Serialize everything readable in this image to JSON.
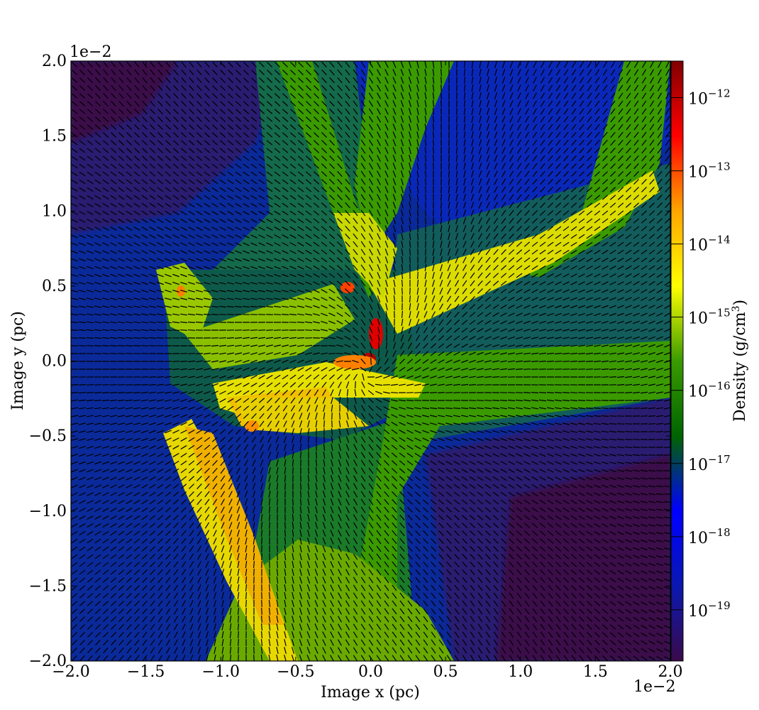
{
  "chart_data": {
    "type": "heatmap",
    "title": "",
    "xlabel": "Image x  (pc)",
    "ylabel": "Image y  (pc)",
    "xlim": [
      -2.0,
      2.0
    ],
    "ylim": [
      -2.0,
      2.0
    ],
    "x_offset_label": "1e−2",
    "y_offset_label": "1e−2",
    "x_ticks": [
      -2.0,
      -1.5,
      -1.0,
      -0.5,
      0.0,
      0.5,
      1.0,
      1.5,
      2.0
    ],
    "x_tick_labels": [
      "−2.0",
      "−1.5",
      "−1.0",
      "−0.5",
      "0.0",
      "0.5",
      "1.0",
      "1.5",
      "2.0"
    ],
    "y_ticks": [
      -2.0,
      -1.5,
      -1.0,
      -0.5,
      0.0,
      0.5,
      1.0,
      1.5,
      2.0
    ],
    "y_tick_labels": [
      "−2.0",
      "−1.5",
      "−1.0",
      "−0.5",
      "0.0",
      "0.5",
      "1.0",
      "1.5",
      "2.0"
    ],
    "colorbar": {
      "label": "Density  (g/cm",
      "label_superscript": "3",
      "label_close": ")",
      "scale": "log",
      "range_exponent": [
        -19.7,
        -11.5
      ],
      "tick_exponents": [
        -19,
        -18,
        -17,
        -16,
        -15,
        -14,
        -13,
        -12
      ],
      "tick_base": "10",
      "tick_superscripts": [
        "−19",
        "−18",
        "−17",
        "−16",
        "−15",
        "−14",
        "−13",
        "−12"
      ],
      "colors": [
        "#3a0a4a",
        "#0a18b0",
        "#0000ff",
        "#006400",
        "#3a9a00",
        "#ffff00",
        "#ffa500",
        "#ff0000",
        "#800000"
      ]
    },
    "quiver": {
      "overlay": true,
      "color": "#000000"
    }
  }
}
